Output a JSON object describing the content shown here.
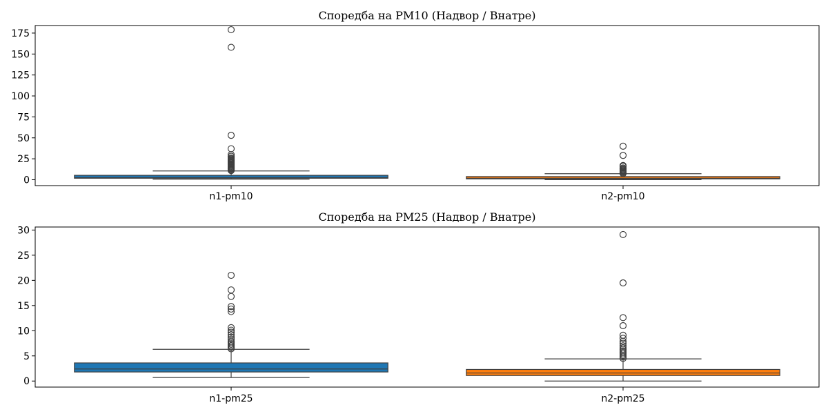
{
  "chart_data": [
    {
      "type": "box",
      "title": "Споредба на PM10 (Надвор / Внатре)",
      "xlabel": "",
      "ylabel": "",
      "categories": [
        "n1-pm10",
        "n2-pm10"
      ],
      "ylim": [
        -7,
        184
      ],
      "yticks": [
        0,
        25,
        50,
        75,
        100,
        125,
        150,
        175
      ],
      "grid": false,
      "series": [
        {
          "category": "n1-pm10",
          "color": "#1f77b4",
          "whisker_low": 0.7,
          "q1": 1.8,
          "median": 2.5,
          "q3": 5.3,
          "whisker_high": 10.5,
          "outliers": [
            11,
            12,
            13,
            14,
            15,
            16,
            17,
            18,
            19,
            20,
            21,
            22,
            23,
            24,
            25,
            26,
            28,
            30,
            37,
            53,
            158,
            179
          ]
        },
        {
          "category": "n2-pm10",
          "color": "#ff7f0e",
          "whisker_low": 0.1,
          "q1": 1.0,
          "median": 1.8,
          "q3": 3.8,
          "whisker_high": 7.2,
          "outliers": [
            7.5,
            8,
            9,
            10,
            11,
            12,
            13,
            14,
            16,
            17,
            29,
            40
          ]
        }
      ]
    },
    {
      "type": "box",
      "title": "Споредба на PM25 (Надвор / Внатре)",
      "xlabel": "",
      "ylabel": "",
      "categories": [
        "n1-pm25",
        "n2-pm25"
      ],
      "ylim": [
        -1.2,
        30.6
      ],
      "yticks": [
        0,
        5,
        10,
        15,
        20,
        25,
        30
      ],
      "grid": false,
      "series": [
        {
          "category": "n1-pm25",
          "color": "#1f77b4",
          "whisker_low": 0.7,
          "q1": 1.8,
          "median": 2.4,
          "q3": 3.6,
          "whisker_high": 6.3,
          "outliers": [
            6.4,
            6.7,
            7.0,
            7.3,
            7.6,
            7.9,
            8.3,
            8.7,
            9.2,
            9.7,
            10.1,
            10.6,
            13.8,
            14.3,
            14.8,
            16.8,
            18.1,
            21.0
          ]
        },
        {
          "category": "n2-pm25",
          "color": "#ff7f0e",
          "whisker_low": 0.0,
          "q1": 1.1,
          "median": 1.6,
          "q3": 2.3,
          "whisker_high": 4.4,
          "outliers": [
            4.5,
            4.8,
            5.1,
            5.4,
            5.7,
            6.0,
            6.3,
            6.6,
            7.0,
            7.5,
            7.9,
            8.5,
            9.1,
            11.0,
            12.6,
            19.5,
            29.1
          ]
        }
      ]
    }
  ]
}
